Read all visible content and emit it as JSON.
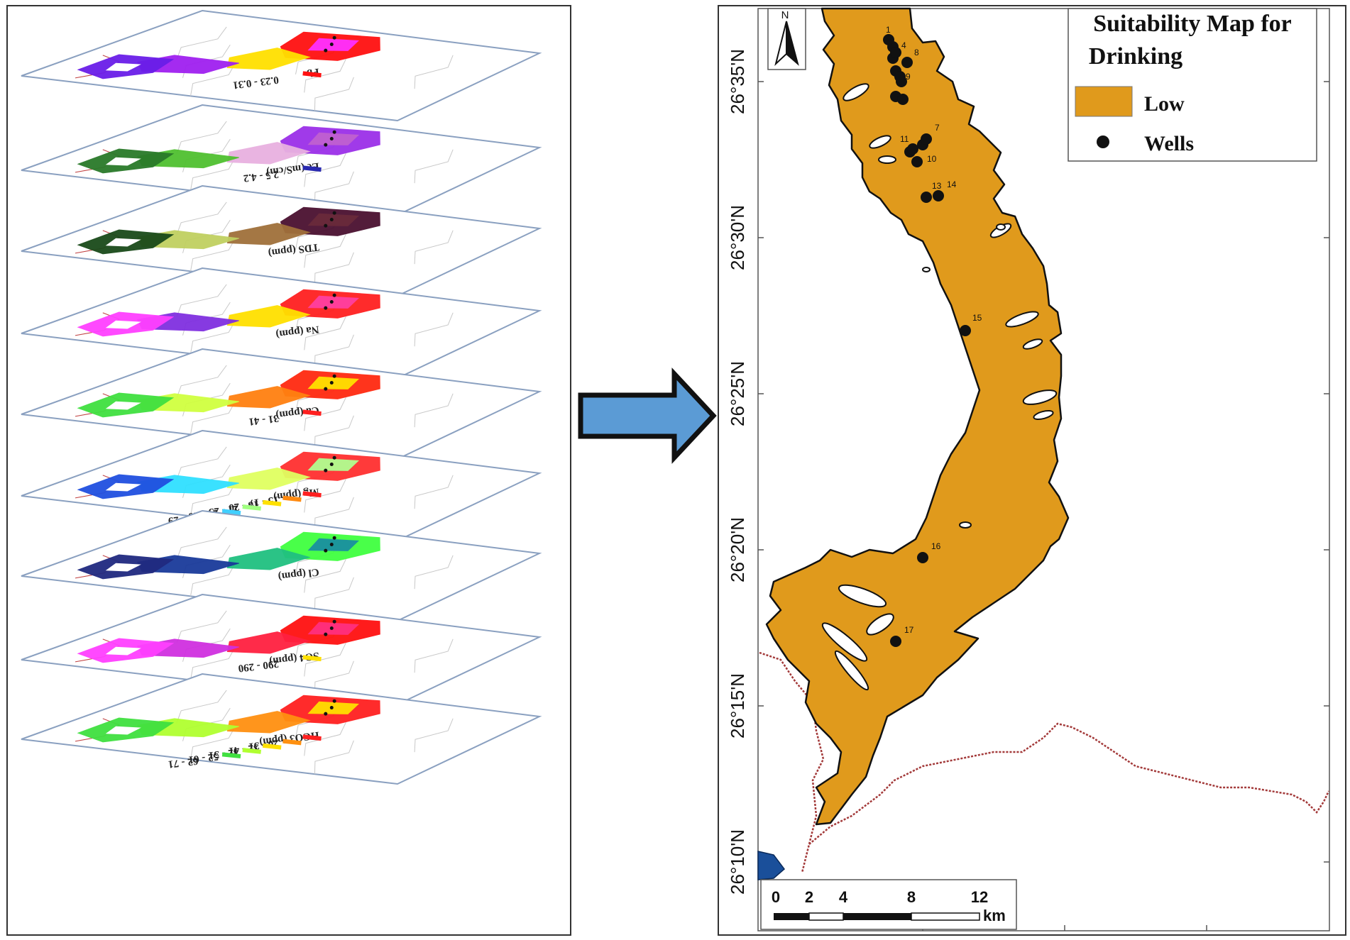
{
  "layers": [
    {
      "id": "pb",
      "title": "Pb",
      "legend": [
        "0.23 - 0.31"
      ],
      "colors": [
        "#ff1010",
        "#ffe000",
        "#ff30ff",
        "#a020f0",
        "#6a1ee8"
      ],
      "sw": [
        "#ff1010"
      ]
    },
    {
      "id": "ec",
      "title": "Ec (mS/cm)",
      "legend": [
        "2.5 - 4.2"
      ],
      "colors": [
        "#9b30e8",
        "#e8b0e0",
        "#c060d0",
        "#50c030",
        "#2a7a2a"
      ],
      "sw": [
        "#2a2ab0",
        "#b070e0"
      ]
    },
    {
      "id": "tds",
      "title": "TDS (ppm)",
      "legend": [],
      "colors": [
        "#4a1030",
        "#a0703a",
        "#6a2a3a",
        "#c0d060",
        "#1a4a1a"
      ],
      "sw": [
        "#4a1030"
      ]
    },
    {
      "id": "na",
      "title": "Na (ppm)",
      "legend": [],
      "colors": [
        "#ff2020",
        "#ffe000",
        "#ff40a0",
        "#8030e0",
        "#ff40ff"
      ],
      "sw": [
        "#ff2020"
      ]
    },
    {
      "id": "ca",
      "title": "Ca (ppm)",
      "legend": [
        "31 - 41"
      ],
      "colors": [
        "#ff2a10",
        "#ff8010",
        "#ffe000",
        "#d0ff40",
        "#40e040"
      ],
      "sw": [
        "#ff2020",
        "#e0e000"
      ]
    },
    {
      "id": "mg",
      "title": "Mg (ppm)",
      "legend": [
        "15 - 17",
        "18 - 20",
        "21 - 23",
        "24 - 26",
        "27 - 29"
      ],
      "colors": [
        "#ff3030",
        "#e0ff60",
        "#b0ff90",
        "#30e0ff",
        "#2050e0"
      ],
      "sw": [
        "#ff2020",
        "#ff8a10",
        "#ffe000",
        "#a0ff80",
        "#40d0ff"
      ]
    },
    {
      "id": "cl",
      "title": "Cl (ppm)",
      "legend": [],
      "colors": [
        "#40ff40",
        "#20c080",
        "#1a90a0",
        "#1a3a9a",
        "#202a80"
      ],
      "sw": [
        "#20c060"
      ]
    },
    {
      "id": "so4",
      "title": "SO4 (ppm)",
      "legend": [
        "290 - 290"
      ],
      "colors": [
        "#ff1010",
        "#ff2040",
        "#ff3080",
        "#d030e0",
        "#ff40ff"
      ],
      "sw": [
        "#ffe000"
      ]
    },
    {
      "id": "hco3",
      "title": "HCO3 (ppm)",
      "legend": [
        "20 - 31",
        "32 - 41",
        "42 - 51",
        "52 - 61",
        "62 - 71"
      ],
      "colors": [
        "#ff2020",
        "#ff9010",
        "#ffe000",
        "#b0ff30",
        "#40e040"
      ],
      "sw": [
        "#ff2020",
        "#ff9010",
        "#ffe000",
        "#b0ff30",
        "#40e040"
      ]
    }
  ],
  "map": {
    "compass": "N",
    "legend_title_line1": "Suitability Map for",
    "legend_title_line2": "Drinking",
    "legend_low": "Low",
    "legend_wells": "Wells",
    "fill_color": "#e09a1c",
    "lat_labels": [
      "26°35'N",
      "26°30'N",
      "26°25'N",
      "26°20'N",
      "26°15'N",
      "26°10'N"
    ],
    "scale_ticks": [
      "0",
      "2",
      "4",
      "8",
      "12"
    ],
    "scale_unit": "km",
    "wells": [
      {
        "label": "1"
      },
      {
        "label": "4"
      },
      {
        "label": "8"
      },
      {
        "label": "9"
      },
      {
        "label": "7"
      },
      {
        "label": "11"
      },
      {
        "label": "10"
      },
      {
        "label": "13"
      },
      {
        "label": "14"
      },
      {
        "label": "15"
      },
      {
        "label": "16"
      },
      {
        "label": "17"
      }
    ]
  }
}
